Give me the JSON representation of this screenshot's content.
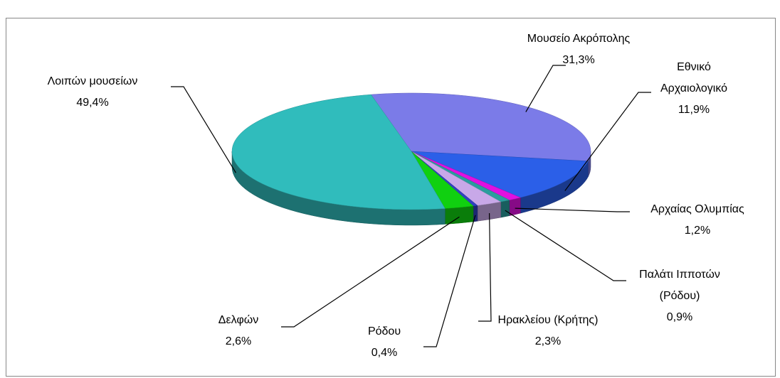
{
  "chart_data": {
    "type": "pie",
    "categories": [
      "Μουσείο Ακρόπολης",
      "Εθνικό Αρχαιολογικό",
      "Αρχαίας Ολυμπίας",
      "Παλάτι Ιπποτών (Ρόδου)",
      "Ηρακλείου (Κρήτης)",
      "Ρόδου",
      "Δελφών",
      "Λοιπών μουσείων"
    ],
    "values": [
      31.3,
      11.9,
      1.2,
      0.9,
      2.3,
      0.4,
      2.6,
      49.4
    ],
    "value_labels": [
      "31,3%",
      "11,9%",
      "1,2%",
      "0,9%",
      "2,3%",
      "0,4%",
      "2,6%",
      "49,4%"
    ],
    "colors": [
      "#7b7be8",
      "#2b5fe8",
      "#e010e0",
      "#2a9d9d",
      "#c8a8e8",
      "#3040c0",
      "#10d010",
      "#30bcbc"
    ]
  }
}
